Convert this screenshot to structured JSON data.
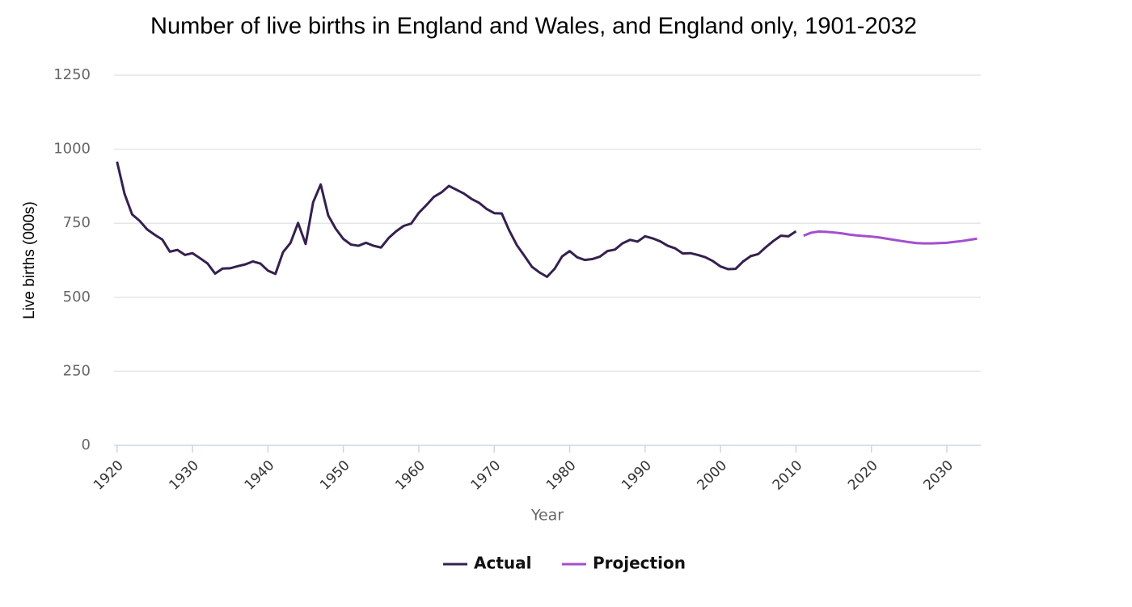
{
  "chart_data": {
    "type": "line",
    "title": "Number of live births in England and Wales, and England only, 1901-2032",
    "x_label": "Year",
    "y_label": "Live births (000s)",
    "x": [
      1920,
      1921,
      1922,
      1923,
      1924,
      1925,
      1926,
      1927,
      1928,
      1929,
      1930,
      1931,
      1932,
      1933,
      1934,
      1935,
      1936,
      1937,
      1938,
      1939,
      1940,
      1941,
      1942,
      1943,
      1944,
      1945,
      1946,
      1947,
      1948,
      1949,
      1950,
      1951,
      1952,
      1953,
      1954,
      1955,
      1956,
      1957,
      1958,
      1959,
      1960,
      1961,
      1962,
      1963,
      1964,
      1965,
      1966,
      1967,
      1968,
      1969,
      1970,
      1971,
      1972,
      1973,
      1974,
      1975,
      1976,
      1977,
      1978,
      1979,
      1980,
      1981,
      1982,
      1983,
      1984,
      1985,
      1986,
      1987,
      1988,
      1989,
      1990,
      1991,
      1992,
      1993,
      1994,
      1995,
      1996,
      1997,
      1998,
      1999,
      2000,
      2001,
      2002,
      2003,
      2004,
      2005,
      2006,
      2007,
      2008,
      2009,
      2010,
      2011,
      2012,
      2013,
      2014,
      2015,
      2016,
      2017,
      2018,
      2019,
      2020,
      2021,
      2022,
      2023,
      2024,
      2025,
      2026,
      2027,
      2028,
      2029,
      2030,
      2031,
      2032,
      2033,
      2034
    ],
    "series": [
      {
        "name": "Actual",
        "color": "#35204f",
        "values": [
          958,
          849,
          780,
          758,
          729,
          711,
          695,
          654,
          660,
          643,
          649,
          632,
          614,
          580,
          597,
          598,
          605,
          611,
          621,
          614,
          590,
          579,
          652,
          684,
          751,
          680,
          821,
          881,
          776,
          731,
          697,
          678,
          674,
          684,
          674,
          668,
          700,
          723,
          741,
          749,
          785,
          811,
          839,
          854,
          876,
          863,
          850,
          832,
          819,
          798,
          784,
          783,
          725,
          676,
          640,
          603,
          584,
          569,
          596,
          638,
          656,
          635,
          626,
          629,
          637,
          656,
          661,
          682,
          694,
          688,
          706,
          699,
          689,
          674,
          665,
          648,
          649,
          643,
          635,
          622,
          604,
          595,
          596,
          621,
          639,
          646,
          669,
          690,
          708,
          706,
          723,
          null,
          null,
          null,
          null,
          null,
          null,
          null,
          null,
          null,
          null,
          null,
          null,
          null,
          null,
          null,
          null,
          null,
          null,
          null,
          null,
          null,
          null,
          null,
          null
        ]
      },
      {
        "name": "Projection",
        "color": "#a34fce",
        "values": [
          null,
          null,
          null,
          null,
          null,
          null,
          null,
          null,
          null,
          null,
          null,
          null,
          null,
          null,
          null,
          null,
          null,
          null,
          null,
          null,
          null,
          null,
          null,
          null,
          null,
          null,
          null,
          null,
          null,
          null,
          null,
          null,
          null,
          null,
          null,
          null,
          null,
          null,
          null,
          null,
          null,
          null,
          null,
          null,
          null,
          null,
          null,
          null,
          null,
          null,
          null,
          null,
          null,
          null,
          null,
          null,
          null,
          null,
          null,
          null,
          null,
          null,
          null,
          null,
          null,
          null,
          null,
          null,
          null,
          null,
          null,
          null,
          null,
          null,
          null,
          null,
          null,
          null,
          null,
          null,
          null,
          null,
          null,
          null,
          null,
          null,
          null,
          null,
          null,
          null,
          null,
          708,
          718,
          722,
          721,
          719,
          716,
          712,
          709,
          707,
          705,
          702,
          698,
          694,
          690,
          686,
          683,
          682,
          682,
          683,
          684,
          687,
          690,
          694,
          698
        ]
      }
    ],
    "xlim": [
      1919.6,
      2034.5
    ],
    "xticks": [
      1920,
      1930,
      1940,
      1950,
      1960,
      1970,
      1980,
      1990,
      2000,
      2010,
      2020,
      2030
    ],
    "ylim": [
      0,
      1250
    ],
    "yticks": [
      0,
      250,
      500,
      750,
      1000,
      1250
    ],
    "grid": true,
    "legend": "bottom"
  }
}
